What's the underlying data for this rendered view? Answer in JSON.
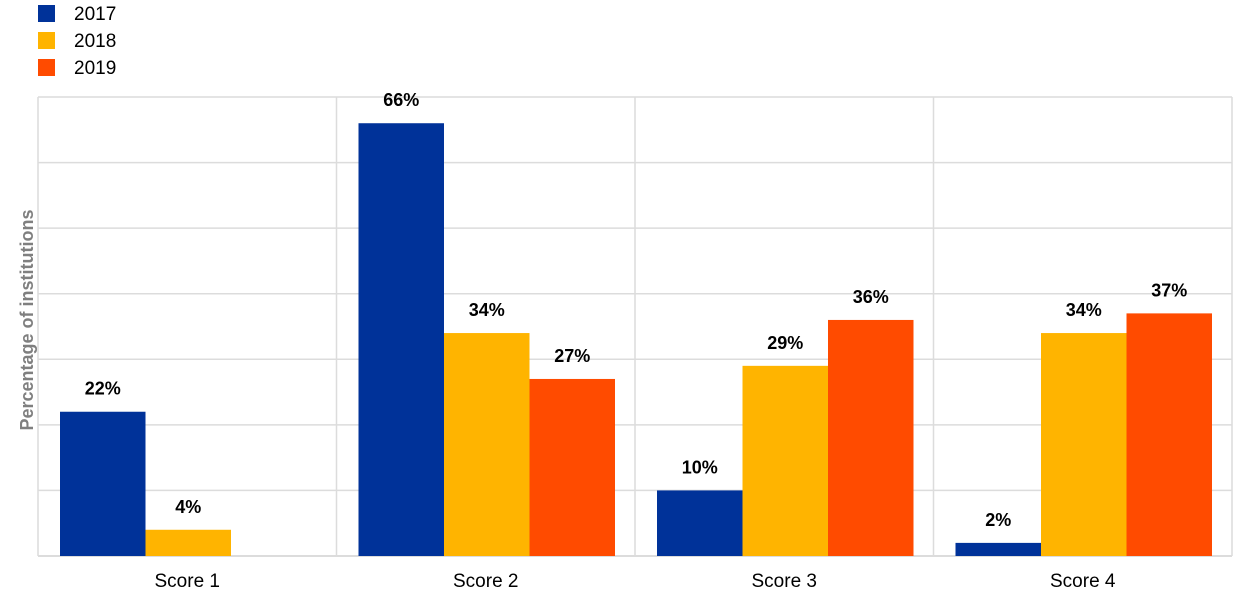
{
  "chart_data": {
    "type": "bar",
    "title": "",
    "xlabel": "",
    "ylabel": "Percentage of institutions",
    "categories": [
      "Score 1",
      "Score 2",
      "Score 3",
      "Score 4"
    ],
    "series": [
      {
        "name": "2017",
        "color": "#003299",
        "values": [
          22,
          66,
          10,
          2
        ],
        "labels": [
          "22%",
          "66%",
          "10%",
          "2%"
        ]
      },
      {
        "name": "2018",
        "color": "#FFB400",
        "values": [
          4,
          34,
          29,
          34
        ],
        "labels": [
          "4%",
          "34%",
          "29%",
          "34%"
        ]
      },
      {
        "name": "2019",
        "color": "#FF4B00",
        "values": [
          0,
          27,
          36,
          37
        ],
        "labels": [
          "",
          "27%",
          "36%",
          "37%"
        ]
      }
    ],
    "ylim": [
      0,
      70
    ],
    "y_gridlines": [
      0,
      10,
      20,
      30,
      40,
      50,
      60,
      70
    ],
    "grid": true,
    "y_tick_labels_shown": false,
    "legend_position": "top-left"
  }
}
